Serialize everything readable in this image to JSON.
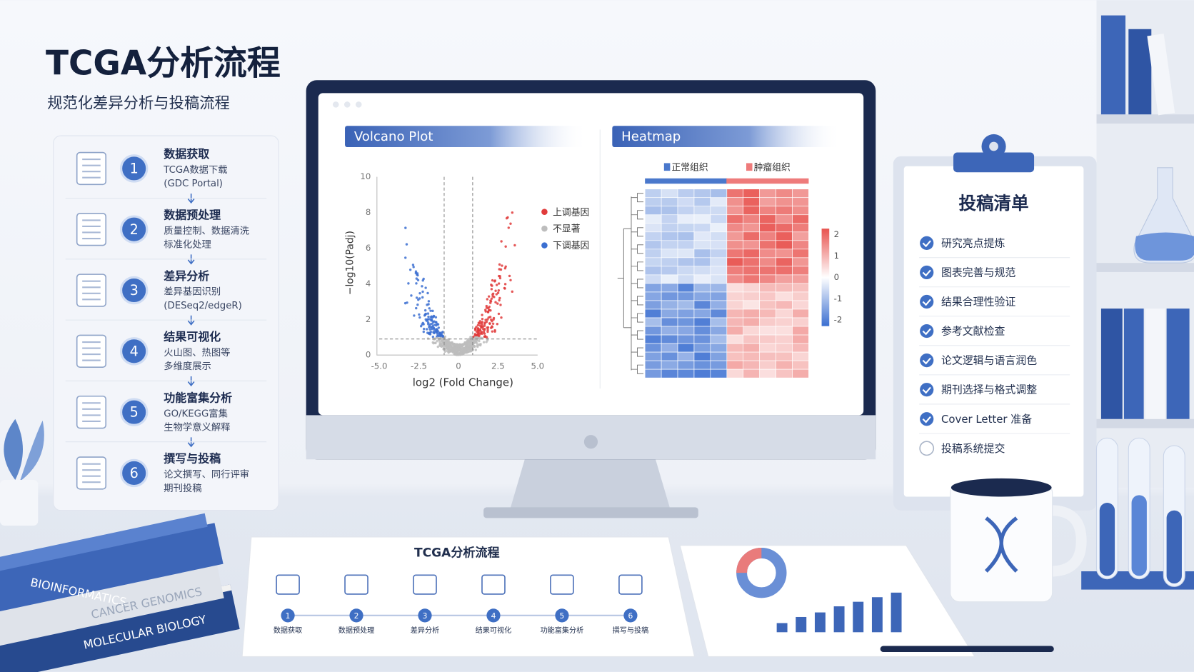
{
  "header": {
    "title": "TCGA分析流程",
    "subtitle": "规范化差异分析与投稿流程"
  },
  "steps": [
    {
      "number": 1,
      "title": "数据获取",
      "lines": [
        "TCGA数据下载",
        "(GDC Portal)"
      ]
    },
    {
      "number": 2,
      "title": "数据预处理",
      "lines": [
        "质量控制、数据清洗",
        "标准化处理"
      ]
    },
    {
      "number": 3,
      "title": "差异分析",
      "lines": [
        "差异基因识别",
        "(DESeq2/edgeR)"
      ]
    },
    {
      "number": 4,
      "title": "结果可视化",
      "lines": [
        "火山图、热图等",
        "多维度展示"
      ]
    },
    {
      "number": 5,
      "title": "功能富集分析",
      "lines": [
        "GO/KEGG富集",
        "生物学意义解释"
      ]
    },
    {
      "number": 6,
      "title": "撰写与投稿",
      "lines": [
        "论文撰写、同行评审",
        "期刊投稿"
      ]
    }
  ],
  "volcano": {
    "title": "Volcano Plot",
    "x_label": "log2 (Fold Change)",
    "y_label": "−log10(Padj)",
    "xticks": [
      {
        "value": -5,
        "label": "-5.0"
      },
      -2.5,
      0,
      2.5,
      {
        "value": 5,
        "label": "5.0"
      }
    ],
    "yticks": [
      0,
      2,
      4,
      6,
      8,
      10
    ],
    "legend": [
      {
        "name": "上调基因",
        "color": "#e03b3b"
      },
      {
        "name": "不显著",
        "color": "#bdbdbd"
      },
      {
        "name": "下调基因",
        "color": "#3b6fd1"
      }
    ]
  },
  "heatmap": {
    "title": "Heatmap",
    "groups": [
      {
        "name": "正常组织",
        "color": "#4a78cc"
      },
      {
        "name": "肿瘤组织",
        "color": "#ee7b7b"
      }
    ],
    "colorbar_ticks": [
      2,
      1,
      0,
      -1,
      -2
    ]
  },
  "checklist": {
    "title": "投稿清单",
    "items": [
      {
        "text": "研究亮点提炼",
        "checked": true
      },
      {
        "text": "图表完善与规范",
        "checked": true
      },
      {
        "text": "结果合理性验证",
        "checked": true
      },
      {
        "text": "参考文献检查",
        "checked": true
      },
      {
        "text": "论文逻辑与语言润色",
        "checked": true
      },
      {
        "text": "期刊选择与格式调整",
        "checked": true
      },
      {
        "text": "Cover Letter 准备",
        "checked": true
      },
      {
        "text": "投稿系统提交",
        "checked": false
      }
    ]
  },
  "books": [
    "BIOINFORMATICS",
    "CANCER GENOMICS",
    "MOLECULAR BIOLOGY"
  ],
  "paper": {
    "title": "TCGA分析流程",
    "steps": [
      {
        "number": 1,
        "label": "数据获取"
      },
      {
        "number": 2,
        "label": "数据预处理"
      },
      {
        "number": 3,
        "label": "差异分析"
      },
      {
        "number": 4,
        "label": "结果可视化"
      },
      {
        "number": 5,
        "label": "功能富集分析"
      },
      {
        "number": 6,
        "label": "撰写与投稿"
      }
    ]
  }
}
